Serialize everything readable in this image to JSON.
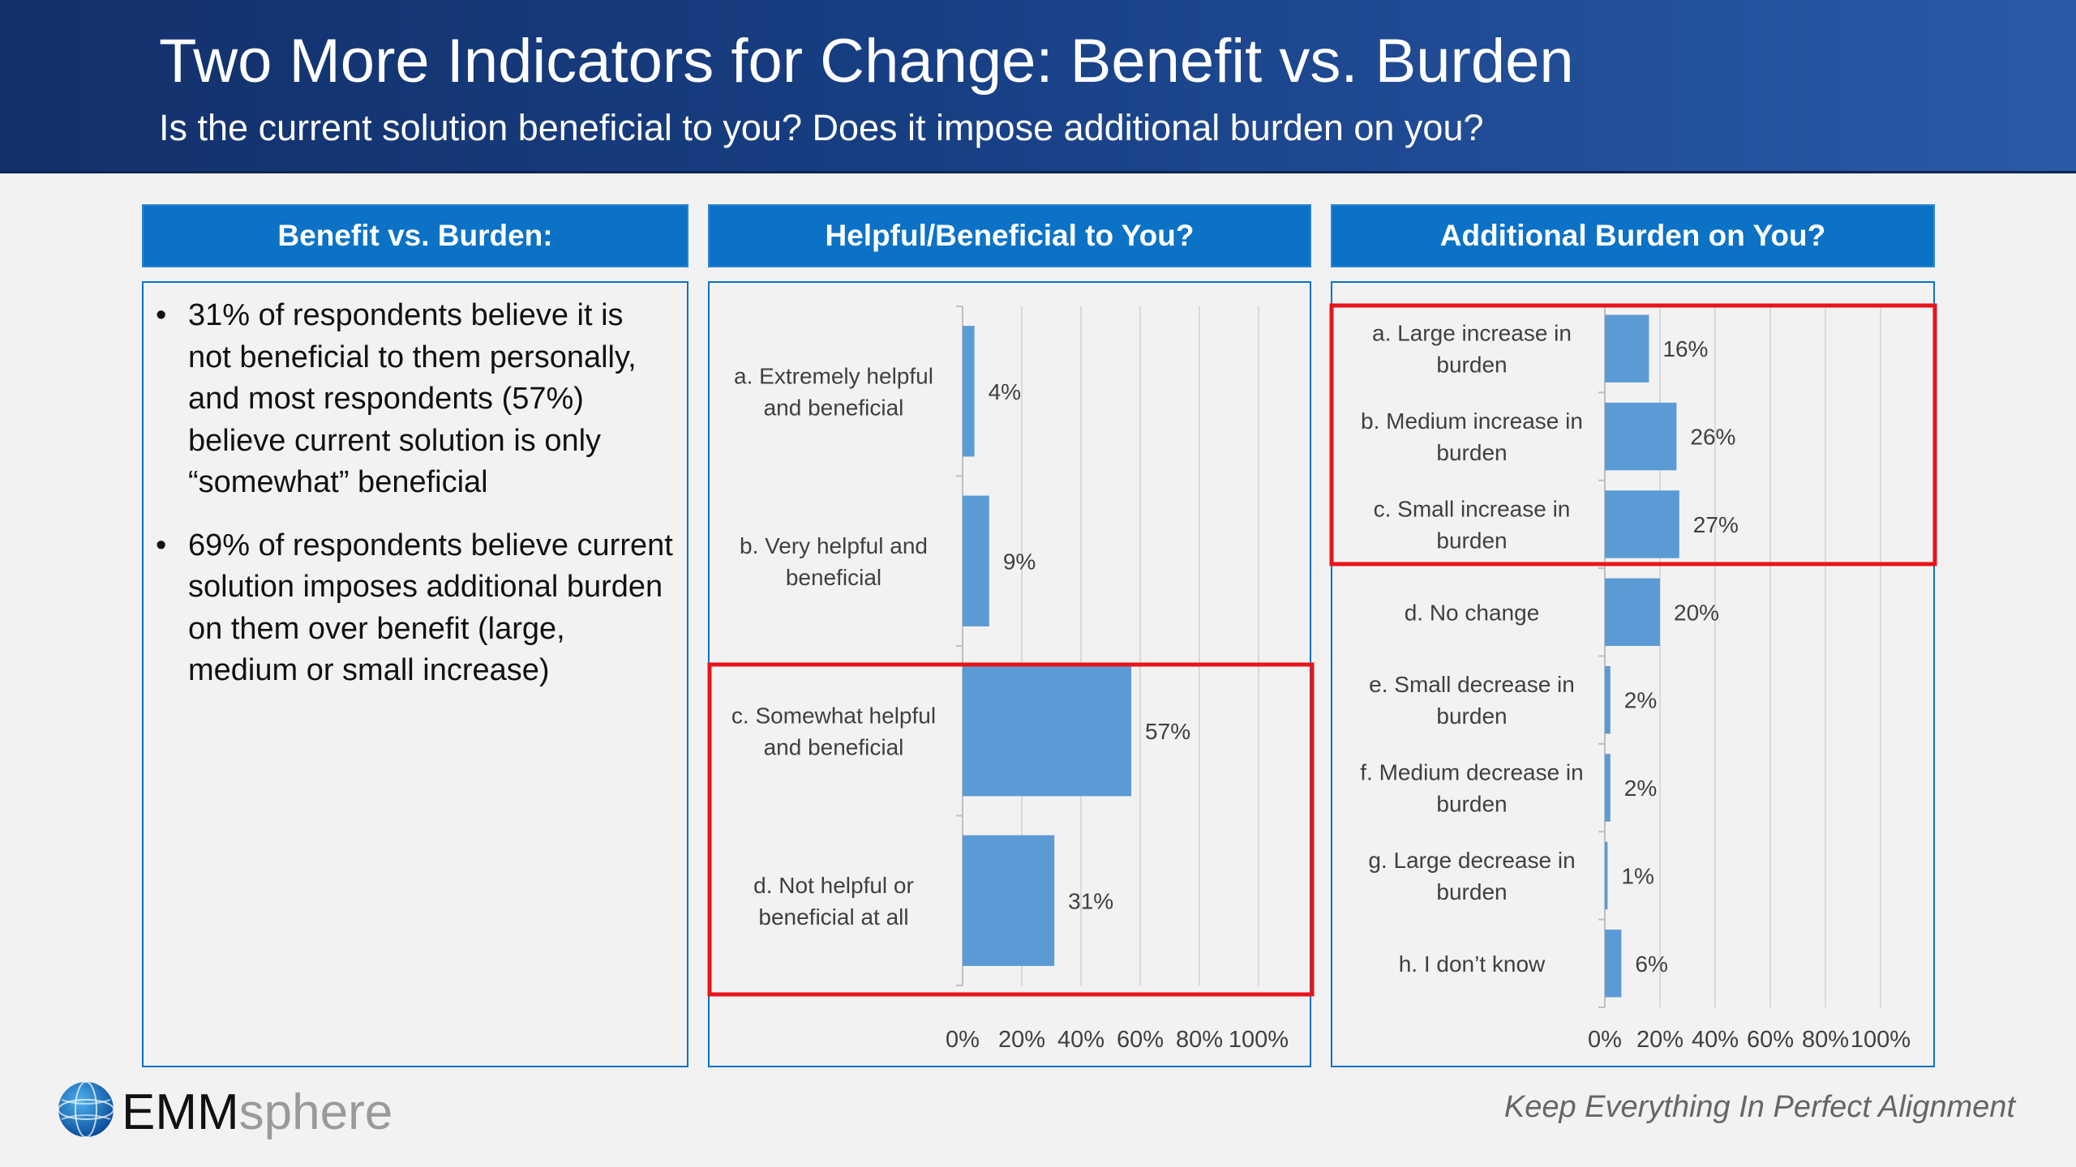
{
  "slide": {
    "title": "Two More Indicators for Change:  Benefit vs. Burden",
    "subtitle": "Is the current solution beneficial to you?  Does it impose additional burden on you?"
  },
  "panels": {
    "left": {
      "heading": "Benefit vs. Burden:",
      "bullet_symbol": "•",
      "bullets": [
        "31% of respondents believe it is not beneficial to them personally, and most respondents (57%) believe current solution is only “somewhat” beneficial",
        "69% of respondents believe current solution imposes additional burden on them over benefit (large, medium or small increase)"
      ]
    },
    "middle": {
      "heading": "Helpful/Beneficial to You?"
    },
    "right": {
      "heading": "Additional Burden on You?"
    }
  },
  "footer": {
    "tagline": "Keep Everything In Perfect Alignment",
    "logo_text_a": "EMM",
    "logo_text_b": "sphere",
    "logo_icon": "globe-icon"
  },
  "colors": {
    "bar": "#5b9bd5",
    "highlight": "#e8141b",
    "panel_head": "#0b72c6"
  },
  "chart_data": [
    {
      "type": "bar",
      "orientation": "horizontal",
      "categories": [
        [
          "a. Extremely helpful",
          "and beneficial"
        ],
        [
          "b. Very helpful and",
          "beneficial"
        ],
        [
          "c. Somewhat helpful",
          "and beneficial"
        ],
        [
          "d. Not helpful or",
          "beneficial at all"
        ]
      ],
      "values": [
        4,
        9,
        57,
        31
      ],
      "data_labels": [
        "4%",
        "9%",
        "57%",
        "31%"
      ],
      "xlim": [
        0,
        100
      ],
      "ticks": [
        "0%",
        "20%",
        "40%",
        "60%",
        "80%",
        "100%"
      ],
      "grid": true,
      "highlighted_categories": [
        2,
        3
      ]
    },
    {
      "type": "bar",
      "orientation": "horizontal",
      "categories": [
        [
          "a. Large increase in",
          "burden"
        ],
        [
          "b. Medium increase in",
          "burden"
        ],
        [
          "c. Small increase in",
          "burden"
        ],
        [
          "d. No change"
        ],
        [
          "e. Small decrease in",
          "burden"
        ],
        [
          "f. Medium decrease in",
          "burden"
        ],
        [
          "g. Large decrease in",
          "burden"
        ],
        [
          "h. I don’t know"
        ]
      ],
      "values": [
        16,
        26,
        27,
        20,
        2,
        2,
        1,
        6
      ],
      "data_labels": [
        "16%",
        "26%",
        "27%",
        "20%",
        "2%",
        "2%",
        "1%",
        "6%"
      ],
      "xlim": [
        0,
        100
      ],
      "ticks": [
        "0%",
        "20%",
        "40%",
        "60%",
        "80%",
        "100%"
      ],
      "grid": true,
      "highlighted_categories": [
        0,
        1,
        2
      ]
    }
  ]
}
